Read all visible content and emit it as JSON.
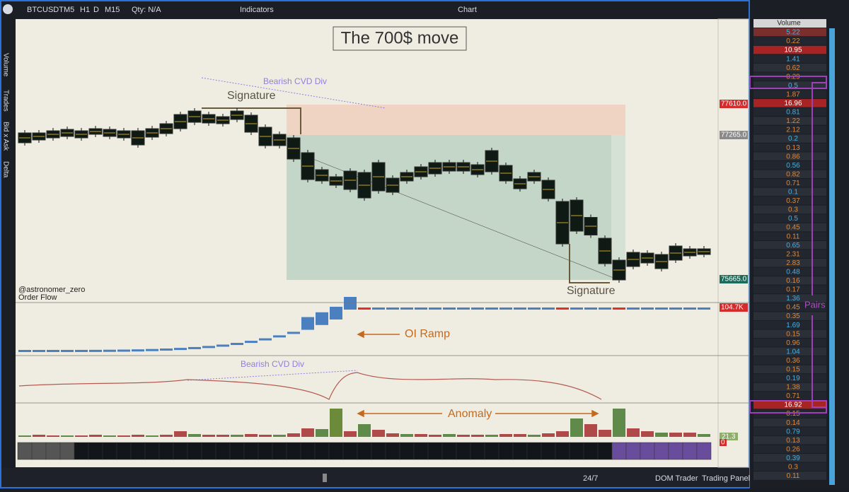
{
  "toolbar": {
    "symbol": "BTCUSDT",
    "timeframes": [
      "M5",
      "H1",
      "D",
      "M15"
    ],
    "qty": "Qty: N/A",
    "indicators": "Indicators",
    "window_title": "Chart"
  },
  "sidebar": {
    "panels": [
      "Volume",
      "Trades",
      "Bid x Ask",
      "Delta"
    ]
  },
  "chart": {
    "title": "The 700$ move",
    "annotations": {
      "bearish_cvd_div_price": "Bearish CVD Div",
      "signature_top": "Signature",
      "signature_bottom": "Signature",
      "watermark": "@astronomer_zero",
      "pane_label": "Order Flow",
      "oi_ramp": "OI Ramp",
      "bearish_cvd_div_cvd": "Bearish CVD Div",
      "anomaly": "Anomaly",
      "pairs": "Pairs"
    },
    "price_labels": [
      "77610.0",
      "77265.0",
      "75665.0"
    ],
    "oi_label": "104.7K",
    "volume_label": "21.3",
    "heatmap_label": "0"
  },
  "bottom_bar": {
    "session": "24/7",
    "dom_trader": "DOM Trader",
    "trading_panel": "Trading Panel"
  },
  "dom": {
    "header": "Volume",
    "rows": [
      "5.22",
      "0.22",
      "10.95",
      "1.41",
      "0.62",
      "0.29",
      "0.5",
      "1.87",
      "16.96",
      "0.81",
      "1.22",
      "2.12",
      "0.2",
      "0.13",
      "0.86",
      "0.56",
      "0.82",
      "0.71",
      "0.1",
      "0.37",
      "0.3",
      "0.5",
      "0.45",
      "0.11",
      "0.65",
      "2.31",
      "2.83",
      "0.48",
      "0.16",
      "0.17",
      "1.36",
      "0.45",
      "0.35",
      "1.69",
      "0.15",
      "0.96",
      "1.04",
      "0.36",
      "0.15",
      "0.19",
      "1.38",
      "0.71",
      "16.92",
      "0.15",
      "0.14",
      "0.79",
      "0.13",
      "0.26",
      "0.39",
      "0.3",
      "0.11"
    ]
  }
}
